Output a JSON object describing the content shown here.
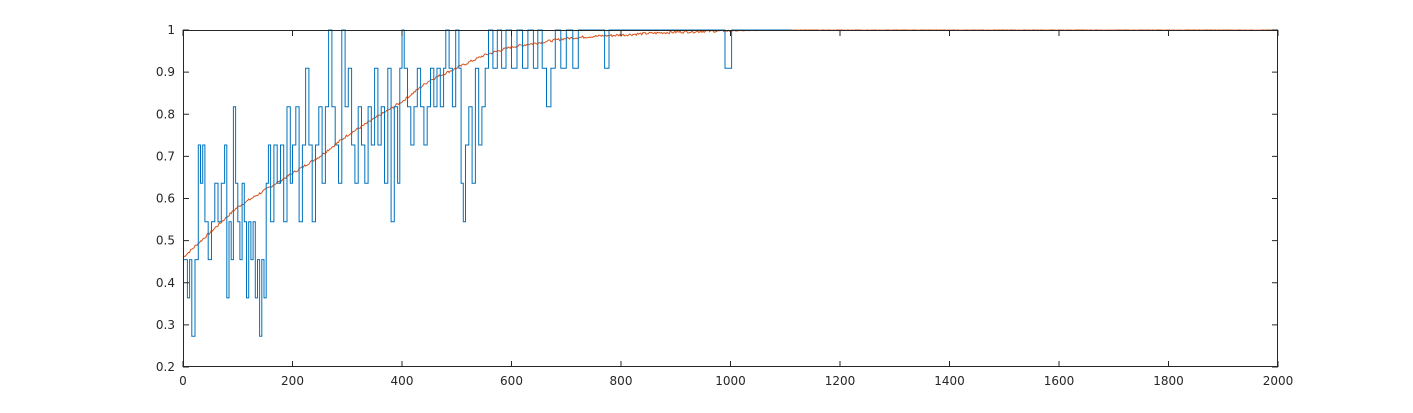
{
  "chart_data": {
    "type": "line",
    "title": "",
    "xlabel": "",
    "ylabel": "",
    "xlim": [
      0,
      2000
    ],
    "ylim": [
      0.2,
      1
    ],
    "x_ticks": [
      0,
      200,
      400,
      600,
      800,
      1000,
      1200,
      1400,
      1600,
      1800,
      2000
    ],
    "y_ticks": [
      0.2,
      0.3,
      0.4,
      0.5,
      0.6,
      0.7,
      0.8,
      0.9,
      1
    ],
    "x_tick_labels": [
      "0",
      "200",
      "400",
      "600",
      "800",
      "1000",
      "1200",
      "1400",
      "1600",
      "1800",
      "2000"
    ],
    "y_tick_labels": [
      "0.2",
      "0.3",
      "0.4",
      "0.5",
      "0.6",
      "0.7",
      "0.8",
      "0.9",
      "1"
    ],
    "grid": false,
    "series": [
      {
        "color": "#0072BD",
        "style": "step",
        "points": [
          [
            0,
            0.455
          ],
          [
            8,
            0.364
          ],
          [
            12,
            0.455
          ],
          [
            16,
            0.273
          ],
          [
            22,
            0.455
          ],
          [
            28,
            0.727
          ],
          [
            32,
            0.636
          ],
          [
            36,
            0.727
          ],
          [
            40,
            0.545
          ],
          [
            46,
            0.455
          ],
          [
            52,
            0.545
          ],
          [
            58,
            0.636
          ],
          [
            64,
            0.545
          ],
          [
            70,
            0.636
          ],
          [
            76,
            0.727
          ],
          [
            80,
            0.364
          ],
          [
            84,
            0.545
          ],
          [
            88,
            0.455
          ],
          [
            92,
            0.818
          ],
          [
            96,
            0.636
          ],
          [
            100,
            0.545
          ],
          [
            104,
            0.455
          ],
          [
            108,
            0.636
          ],
          [
            112,
            0.545
          ],
          [
            116,
            0.364
          ],
          [
            120,
            0.545
          ],
          [
            124,
            0.455
          ],
          [
            128,
            0.545
          ],
          [
            132,
            0.364
          ],
          [
            136,
            0.455
          ],
          [
            140,
            0.273
          ],
          [
            144,
            0.455
          ],
          [
            148,
            0.364
          ],
          [
            152,
            0.636
          ],
          [
            156,
            0.727
          ],
          [
            160,
            0.545
          ],
          [
            166,
            0.727
          ],
          [
            172,
            0.636
          ],
          [
            178,
            0.727
          ],
          [
            184,
            0.545
          ],
          [
            190,
            0.818
          ],
          [
            196,
            0.636
          ],
          [
            200,
            0.727
          ],
          [
            206,
            0.818
          ],
          [
            212,
            0.545
          ],
          [
            218,
            0.727
          ],
          [
            224,
            0.909
          ],
          [
            230,
            0.727
          ],
          [
            236,
            0.545
          ],
          [
            242,
            0.727
          ],
          [
            248,
            0.818
          ],
          [
            254,
            0.636
          ],
          [
            260,
            0.818
          ],
          [
            266,
            1.0
          ],
          [
            272,
            0.818
          ],
          [
            278,
            0.727
          ],
          [
            284,
            0.636
          ],
          [
            290,
            1.0
          ],
          [
            296,
            0.818
          ],
          [
            302,
            0.909
          ],
          [
            308,
            0.727
          ],
          [
            314,
            0.636
          ],
          [
            320,
            0.818
          ],
          [
            326,
            0.727
          ],
          [
            332,
            0.636
          ],
          [
            338,
            0.818
          ],
          [
            344,
            0.727
          ],
          [
            350,
            0.909
          ],
          [
            356,
            0.727
          ],
          [
            362,
            0.818
          ],
          [
            368,
            0.636
          ],
          [
            374,
            0.909
          ],
          [
            380,
            0.545
          ],
          [
            386,
            0.818
          ],
          [
            392,
            0.636
          ],
          [
            396,
            0.909
          ],
          [
            400,
            1.0
          ],
          [
            404,
            0.909
          ],
          [
            410,
            0.818
          ],
          [
            416,
            0.727
          ],
          [
            422,
            0.818
          ],
          [
            428,
            0.909
          ],
          [
            434,
            0.818
          ],
          [
            440,
            0.727
          ],
          [
            446,
            0.818
          ],
          [
            452,
            0.909
          ],
          [
            458,
            0.818
          ],
          [
            464,
            0.909
          ],
          [
            470,
            0.818
          ],
          [
            476,
            0.909
          ],
          [
            480,
            1.0
          ],
          [
            486,
            0.909
          ],
          [
            492,
            0.818
          ],
          [
            498,
            1.0
          ],
          [
            504,
            0.909
          ],
          [
            508,
            0.636
          ],
          [
            512,
            0.545
          ],
          [
            516,
            0.727
          ],
          [
            522,
            0.818
          ],
          [
            528,
            0.636
          ],
          [
            534,
            0.909
          ],
          [
            540,
            0.727
          ],
          [
            546,
            0.818
          ],
          [
            552,
            0.909
          ],
          [
            558,
            1.0
          ],
          [
            566,
            0.909
          ],
          [
            574,
            1.0
          ],
          [
            582,
            0.909
          ],
          [
            590,
            1.0
          ],
          [
            600,
            0.909
          ],
          [
            610,
            1.0
          ],
          [
            620,
            0.909
          ],
          [
            630,
            1.0
          ],
          [
            640,
            0.909
          ],
          [
            648,
            1.0
          ],
          [
            656,
            0.909
          ],
          [
            664,
            0.818
          ],
          [
            672,
            0.909
          ],
          [
            680,
            1.0
          ],
          [
            690,
            0.909
          ],
          [
            700,
            1.0
          ],
          [
            712,
            0.909
          ],
          [
            722,
            1.0
          ],
          [
            740,
            1.0
          ],
          [
            756,
            1.0
          ],
          [
            770,
            0.909
          ],
          [
            778,
            1.0
          ],
          [
            800,
            1.0
          ],
          [
            860,
            1.0
          ],
          [
            900,
            1.0
          ],
          [
            980,
            1.0
          ],
          [
            990,
            0.909
          ],
          [
            1002,
            1.0
          ],
          [
            1110,
            1.0
          ]
        ]
      },
      {
        "color": "#D95319",
        "style": "noisy-line",
        "points": [
          [
            0,
            0.46
          ],
          [
            50,
            0.52
          ],
          [
            100,
            0.58
          ],
          [
            150,
            0.62
          ],
          [
            200,
            0.66
          ],
          [
            250,
            0.7
          ],
          [
            300,
            0.75
          ],
          [
            350,
            0.79
          ],
          [
            400,
            0.83
          ],
          [
            450,
            0.88
          ],
          [
            500,
            0.91
          ],
          [
            550,
            0.94
          ],
          [
            600,
            0.96
          ],
          [
            650,
            0.97
          ],
          [
            700,
            0.98
          ],
          [
            750,
            0.985
          ],
          [
            800,
            0.988
          ],
          [
            850,
            0.992
          ],
          [
            900,
            0.995
          ],
          [
            950,
            0.997
          ],
          [
            1000,
            0.998
          ],
          [
            1050,
            0.999
          ],
          [
            1100,
            1.0
          ],
          [
            1200,
            1.0
          ],
          [
            1400,
            1.0
          ],
          [
            1600,
            1.0
          ],
          [
            1800,
            1.0
          ],
          [
            2000,
            1.0
          ]
        ]
      }
    ]
  }
}
